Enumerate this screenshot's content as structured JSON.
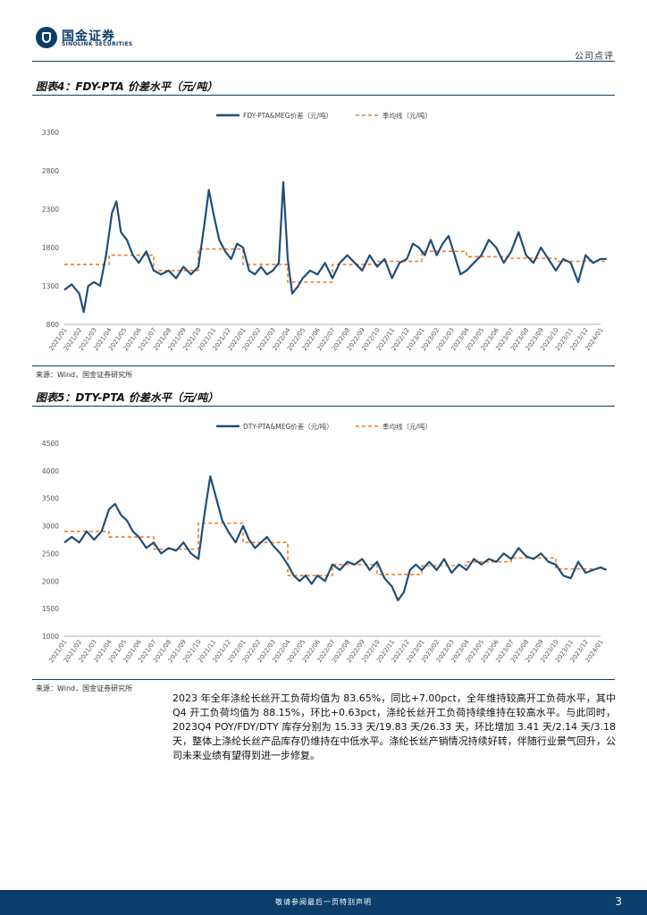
{
  "header": {
    "logo_cn": "国金证券",
    "logo_en": "SINOLINK SECURITIES",
    "doc_type": "公司点评"
  },
  "figures": [
    {
      "title": "图表4：FDY-PTA 价差水平（元/吨）",
      "source": "来源：Wind，国金证券研究所"
    },
    {
      "title": "图表5：DTY-PTA 价差水平（元/吨）",
      "source": "来源：Wind，国金证券研究所"
    }
  ],
  "chart_data": [
    {
      "type": "line",
      "title": "",
      "ylim": [
        800,
        3300
      ],
      "yticks": [
        800,
        1300,
        1800,
        2300,
        2800,
        3300
      ],
      "x_labels": [
        "2021/01",
        "2021/02",
        "2021/03",
        "2021/04",
        "2021/05",
        "2021/06",
        "2021/07",
        "2021/08",
        "2021/09",
        "2021/10",
        "2021/11",
        "2021/12",
        "2022/01",
        "2022/02",
        "2022/03",
        "2022/04",
        "2022/05",
        "2022/06",
        "2022/07",
        "2022/08",
        "2022/09",
        "2022/10",
        "2022/11",
        "2022/12",
        "2023/01",
        "2023/02",
        "2023/03",
        "2023/04",
        "2023/05",
        "2023/06",
        "2023/07",
        "2023/08",
        "2023/09",
        "2023/10",
        "2023/11",
        "2023/12",
        "2024/01"
      ],
      "legend": [
        "FDY-PTA&MEG价差（元/吨）",
        "季均线（元/吨）"
      ],
      "legend_position": "top",
      "grid": false,
      "series": [
        {
          "name": "FDY-PTA&MEG价差（元/吨）",
          "color": "#1f4e79",
          "style": "solid",
          "points": [
            [
              0,
              1250
            ],
            [
              0.5,
              1320
            ],
            [
              1,
              1200
            ],
            [
              1.3,
              960
            ],
            [
              1.6,
              1300
            ],
            [
              2,
              1350
            ],
            [
              2.4,
              1300
            ],
            [
              2.8,
              1700
            ],
            [
              3.2,
              2250
            ],
            [
              3.5,
              2400
            ],
            [
              3.8,
              2000
            ],
            [
              4.2,
              1900
            ],
            [
              4.6,
              1700
            ],
            [
              5,
              1600
            ],
            [
              5.5,
              1750
            ],
            [
              6,
              1500
            ],
            [
              6.5,
              1450
            ],
            [
              7,
              1500
            ],
            [
              7.5,
              1400
            ],
            [
              8,
              1550
            ],
            [
              8.5,
              1450
            ],
            [
              9,
              1550
            ],
            [
              9.4,
              2100
            ],
            [
              9.7,
              2550
            ],
            [
              10,
              2250
            ],
            [
              10.4,
              1900
            ],
            [
              10.8,
              1750
            ],
            [
              11.2,
              1650
            ],
            [
              11.6,
              1850
            ],
            [
              12,
              1800
            ],
            [
              12.4,
              1500
            ],
            [
              12.8,
              1450
            ],
            [
              13.2,
              1550
            ],
            [
              13.6,
              1450
            ],
            [
              14,
              1500
            ],
            [
              14.4,
              1600
            ],
            [
              14.7,
              2650
            ],
            [
              15,
              1650
            ],
            [
              15.3,
              1200
            ],
            [
              15.7,
              1300
            ],
            [
              16,
              1400
            ],
            [
              16.5,
              1500
            ],
            [
              17,
              1450
            ],
            [
              17.5,
              1600
            ],
            [
              18,
              1400
            ],
            [
              18.5,
              1600
            ],
            [
              19,
              1700
            ],
            [
              19.5,
              1600
            ],
            [
              20,
              1500
            ],
            [
              20.5,
              1700
            ],
            [
              21,
              1550
            ],
            [
              21.5,
              1650
            ],
            [
              22,
              1400
            ],
            [
              22.5,
              1600
            ],
            [
              23,
              1650
            ],
            [
              23.4,
              1850
            ],
            [
              23.8,
              1800
            ],
            [
              24.2,
              1700
            ],
            [
              24.6,
              1900
            ],
            [
              25,
              1700
            ],
            [
              25.4,
              1850
            ],
            [
              25.8,
              1950
            ],
            [
              26.2,
              1700
            ],
            [
              26.6,
              1450
            ],
            [
              27,
              1500
            ],
            [
              27.5,
              1600
            ],
            [
              28,
              1700
            ],
            [
              28.5,
              1900
            ],
            [
              29,
              1800
            ],
            [
              29.5,
              1600
            ],
            [
              30,
              1750
            ],
            [
              30.5,
              2000
            ],
            [
              31,
              1700
            ],
            [
              31.5,
              1600
            ],
            [
              32,
              1800
            ],
            [
              32.5,
              1650
            ],
            [
              33,
              1500
            ],
            [
              33.5,
              1650
            ],
            [
              34,
              1600
            ],
            [
              34.5,
              1350
            ],
            [
              35,
              1700
            ],
            [
              35.5,
              1600
            ],
            [
              36,
              1650
            ],
            [
              36.4,
              1650
            ]
          ]
        },
        {
          "name": "季均线（元/吨）",
          "color": "#f07f2a",
          "style": "dashed",
          "points": [
            [
              0,
              1580
            ],
            [
              3,
              1580
            ],
            [
              3,
              1700
            ],
            [
              6,
              1700
            ],
            [
              6,
              1500
            ],
            [
              9,
              1500
            ],
            [
              9,
              1780
            ],
            [
              12,
              1780
            ],
            [
              12,
              1580
            ],
            [
              15,
              1580
            ],
            [
              15,
              1350
            ],
            [
              18,
              1350
            ],
            [
              18,
              1580
            ],
            [
              21,
              1580
            ],
            [
              21,
              1620
            ],
            [
              24,
              1620
            ],
            [
              24,
              1750
            ],
            [
              27,
              1750
            ],
            [
              27,
              1680
            ],
            [
              30,
              1680
            ],
            [
              30,
              1660
            ],
            [
              33,
              1660
            ],
            [
              33,
              1620
            ],
            [
              36.4,
              1620
            ]
          ]
        }
      ]
    },
    {
      "type": "line",
      "title": "",
      "ylim": [
        1000,
        4500
      ],
      "yticks": [
        1000,
        1500,
        2000,
        2500,
        3000,
        3500,
        4000,
        4500
      ],
      "x_labels": [
        "2021/01",
        "2021/02",
        "2021/03",
        "2021/04",
        "2021/05",
        "2021/06",
        "2021/07",
        "2021/08",
        "2021/09",
        "2021/10",
        "2021/11",
        "2021/12",
        "2022/01",
        "2022/02",
        "2022/03",
        "2022/04",
        "2022/05",
        "2022/06",
        "2022/07",
        "2022/08",
        "2022/09",
        "2022/10",
        "2022/11",
        "2022/12",
        "2023/01",
        "2023/02",
        "2023/03",
        "2023/04",
        "2023/05",
        "2023/06",
        "2023/07",
        "2023/08",
        "2023/09",
        "2023/10",
        "2023/11",
        "2023/12",
        "2024/01"
      ],
      "legend": [
        "DTY-PTA&MEG价差（元/吨）",
        "季均线（元/吨）"
      ],
      "legend_position": "top",
      "grid": false,
      "series": [
        {
          "name": "DTY-PTA&MEG价差（元/吨）",
          "color": "#1f4e79",
          "style": "solid",
          "points": [
            [
              0,
              2700
            ],
            [
              0.5,
              2800
            ],
            [
              1,
              2700
            ],
            [
              1.5,
              2900
            ],
            [
              2,
              2750
            ],
            [
              2.5,
              2900
            ],
            [
              3,
              3300
            ],
            [
              3.4,
              3400
            ],
            [
              3.8,
              3200
            ],
            [
              4.2,
              3100
            ],
            [
              4.6,
              2900
            ],
            [
              5,
              2800
            ],
            [
              5.5,
              2600
            ],
            [
              6,
              2700
            ],
            [
              6.5,
              2500
            ],
            [
              7,
              2600
            ],
            [
              7.5,
              2550
            ],
            [
              8,
              2700
            ],
            [
              8.5,
              2500
            ],
            [
              9,
              2400
            ],
            [
              9.4,
              3200
            ],
            [
              9.8,
              3900
            ],
            [
              10.2,
              3500
            ],
            [
              10.6,
              3100
            ],
            [
              11,
              2900
            ],
            [
              11.5,
              2700
            ],
            [
              12,
              3000
            ],
            [
              12.4,
              2750
            ],
            [
              12.8,
              2600
            ],
            [
              13.2,
              2700
            ],
            [
              13.6,
              2800
            ],
            [
              14,
              2650
            ],
            [
              14.5,
              2500
            ],
            [
              15,
              2300
            ],
            [
              15.4,
              2100
            ],
            [
              15.8,
              2000
            ],
            [
              16.2,
              2100
            ],
            [
              16.6,
              1950
            ],
            [
              17,
              2100
            ],
            [
              17.5,
              2000
            ],
            [
              18,
              2300
            ],
            [
              18.5,
              2200
            ],
            [
              19,
              2350
            ],
            [
              19.5,
              2300
            ],
            [
              20,
              2400
            ],
            [
              20.5,
              2200
            ],
            [
              21,
              2350
            ],
            [
              21.5,
              2050
            ],
            [
              22,
              1900
            ],
            [
              22.4,
              1650
            ],
            [
              22.8,
              1800
            ],
            [
              23.2,
              2200
            ],
            [
              23.6,
              2300
            ],
            [
              24,
              2200
            ],
            [
              24.5,
              2350
            ],
            [
              25,
              2200
            ],
            [
              25.5,
              2400
            ],
            [
              26,
              2150
            ],
            [
              26.5,
              2300
            ],
            [
              27,
              2200
            ],
            [
              27.5,
              2400
            ],
            [
              28,
              2300
            ],
            [
              28.5,
              2400
            ],
            [
              29,
              2350
            ],
            [
              29.5,
              2500
            ],
            [
              30,
              2400
            ],
            [
              30.5,
              2600
            ],
            [
              31,
              2450
            ],
            [
              31.5,
              2400
            ],
            [
              32,
              2500
            ],
            [
              32.5,
              2350
            ],
            [
              33,
              2300
            ],
            [
              33.5,
              2100
            ],
            [
              34,
              2050
            ],
            [
              34.5,
              2350
            ],
            [
              35,
              2150
            ],
            [
              35.5,
              2200
            ],
            [
              36,
              2250
            ],
            [
              36.4,
              2200
            ]
          ]
        },
        {
          "name": "季均线（元/吨）",
          "color": "#f07f2a",
          "style": "dashed",
          "points": [
            [
              0,
              2900
            ],
            [
              3,
              2900
            ],
            [
              3,
              2800
            ],
            [
              6,
              2800
            ],
            [
              6,
              2580
            ],
            [
              9,
              2580
            ],
            [
              9,
              3050
            ],
            [
              12,
              3050
            ],
            [
              12,
              2700
            ],
            [
              15,
              2700
            ],
            [
              15,
              2100
            ],
            [
              18,
              2100
            ],
            [
              18,
              2300
            ],
            [
              21,
              2300
            ],
            [
              21,
              2120
            ],
            [
              24,
              2120
            ],
            [
              24,
              2280
            ],
            [
              27,
              2280
            ],
            [
              27,
              2350
            ],
            [
              30,
              2350
            ],
            [
              30,
              2420
            ],
            [
              33,
              2420
            ],
            [
              33,
              2220
            ],
            [
              36.4,
              2220
            ]
          ]
        }
      ]
    }
  ],
  "body": {
    "paragraph": "2023 年全年涤纶长丝开工负荷均值为 83.65%，同比+7.00pct，全年维持较高开工负荷水平，其中 Q4 开工负荷均值为 88.15%，环比+0.63pct，涤纶长丝开工负荷持续维持在较高水平。与此同时，2023Q4 POY/FDY/DTY 库存分别为 15.33 天/19.83 天/26.33 天，环比增加 3.41 天/2.14 天/3.18 天，整体上涤纶长丝产品库存仍维持在中低水平。涤纶长丝产销情况持续好转，伴随行业景气回升，公司未来业绩有望得到进一步修复。"
  },
  "footer": {
    "note": "敬请参阅最后一页特别声明",
    "page_number": "3"
  }
}
